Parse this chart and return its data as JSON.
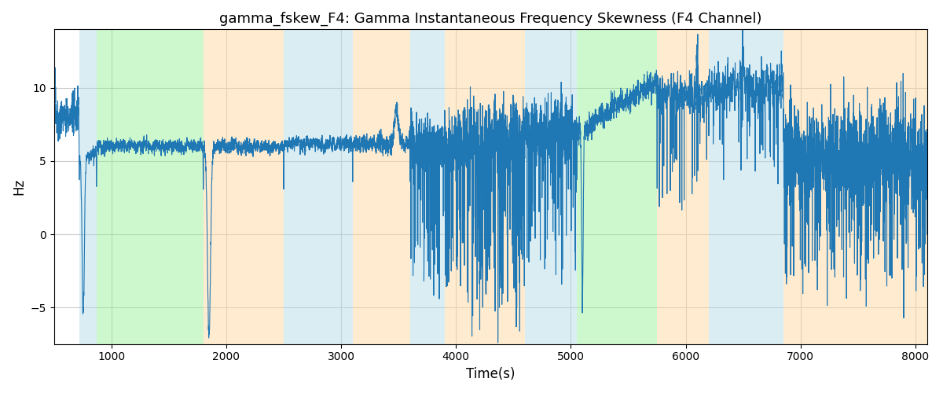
{
  "title": "gamma_fskew_F4: Gamma Instantaneous Frequency Skewness (F4 Channel)",
  "xlabel": "Time(s)",
  "ylabel": "Hz",
  "xlim": [
    500,
    8100
  ],
  "ylim": [
    -7.5,
    14
  ],
  "bg_bands": [
    {
      "xmin": 720,
      "xmax": 870,
      "color": "#add8e6",
      "alpha": 0.45
    },
    {
      "xmin": 870,
      "xmax": 1800,
      "color": "#90ee90",
      "alpha": 0.45
    },
    {
      "xmin": 1800,
      "xmax": 2500,
      "color": "#ffd9a0",
      "alpha": 0.5
    },
    {
      "xmin": 2500,
      "xmax": 3100,
      "color": "#add8e6",
      "alpha": 0.45
    },
    {
      "xmin": 3100,
      "xmax": 3600,
      "color": "#ffd9a0",
      "alpha": 0.5
    },
    {
      "xmin": 3600,
      "xmax": 3900,
      "color": "#add8e6",
      "alpha": 0.45
    },
    {
      "xmin": 3900,
      "xmax": 4600,
      "color": "#ffd9a0",
      "alpha": 0.5
    },
    {
      "xmin": 4600,
      "xmax": 5050,
      "color": "#add8e6",
      "alpha": 0.45
    },
    {
      "xmin": 5050,
      "xmax": 5050,
      "color": "#add8e6",
      "alpha": 0.45
    },
    {
      "xmin": 5050,
      "xmax": 5750,
      "color": "#90ee90",
      "alpha": 0.45
    },
    {
      "xmin": 5750,
      "xmax": 6200,
      "color": "#ffd9a0",
      "alpha": 0.5
    },
    {
      "xmin": 6200,
      "xmax": 6850,
      "color": "#add8e6",
      "alpha": 0.45
    },
    {
      "xmin": 6850,
      "xmax": 8200,
      "color": "#ffd9a0",
      "alpha": 0.5
    }
  ],
  "line_color": "#1f77b4",
  "line_width": 0.8,
  "grid_color": "#cccccc",
  "yticks": [
    -5,
    0,
    5,
    10
  ],
  "xticks": [
    1000,
    2000,
    3000,
    4000,
    5000,
    6000,
    7000,
    8000
  ],
  "seed": 42
}
